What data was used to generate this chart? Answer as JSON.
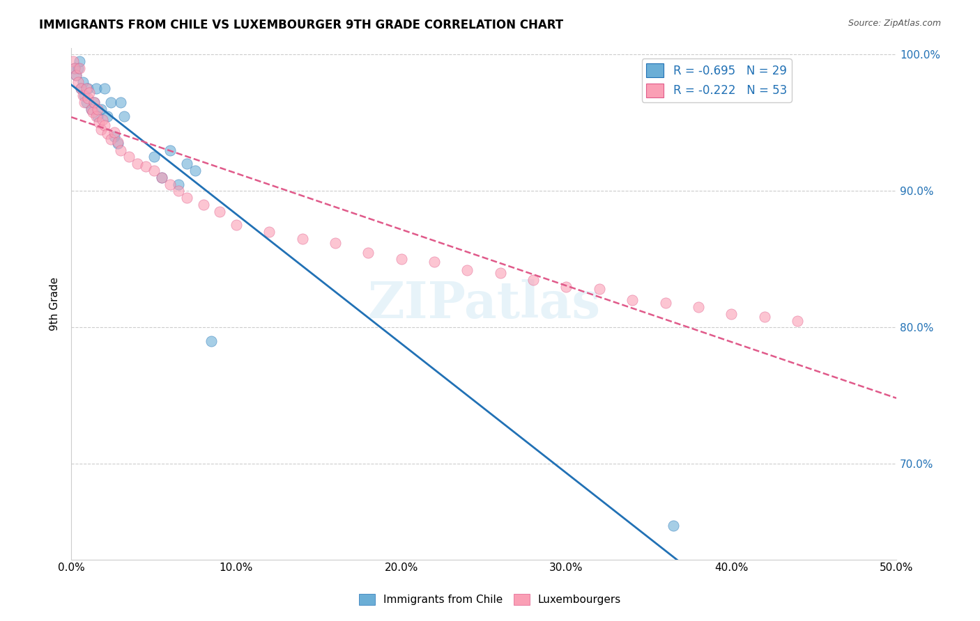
{
  "title": "IMMIGRANTS FROM CHILE VS LUXEMBOURGER 9TH GRADE CORRELATION CHART",
  "source": "Source: ZipAtlas.com",
  "xlabel_bottom": "",
  "ylabel": "9th Grade",
  "x_min": 0.0,
  "x_max": 0.5,
  "y_min": 0.63,
  "y_max": 1.005,
  "x_ticks": [
    0.0,
    0.1,
    0.2,
    0.3,
    0.4,
    0.5
  ],
  "x_tick_labels": [
    "0.0%",
    "10.0%",
    "20.0%",
    "30.0%",
    "40.0%",
    "50.0%"
  ],
  "y_ticks": [
    0.7,
    0.8,
    0.9,
    1.0
  ],
  "y_tick_labels": [
    "70.0%",
    "80.0%",
    "90.0%",
    "100.0%"
  ],
  "legend_labels": [
    "Immigrants from Chile",
    "Luxembourgers"
  ],
  "blue_color": "#6baed6",
  "pink_color": "#fa9fb5",
  "blue_line_color": "#2171b5",
  "pink_line_color": "#e05a8a",
  "R_blue": -0.695,
  "N_blue": 29,
  "R_pink": -0.222,
  "N_pink": 53,
  "watermark": "ZIPatlas",
  "blue_scatter": [
    [
      0.002,
      0.99
    ],
    [
      0.003,
      0.985
    ],
    [
      0.004,
      0.99
    ],
    [
      0.005,
      0.995
    ],
    [
      0.006,
      0.975
    ],
    [
      0.007,
      0.98
    ],
    [
      0.008,
      0.97
    ],
    [
      0.009,
      0.965
    ],
    [
      0.01,
      0.975
    ],
    [
      0.012,
      0.96
    ],
    [
      0.014,
      0.965
    ],
    [
      0.015,
      0.975
    ],
    [
      0.016,
      0.955
    ],
    [
      0.018,
      0.96
    ],
    [
      0.02,
      0.975
    ],
    [
      0.022,
      0.955
    ],
    [
      0.024,
      0.965
    ],
    [
      0.026,
      0.94
    ],
    [
      0.028,
      0.935
    ],
    [
      0.03,
      0.965
    ],
    [
      0.032,
      0.955
    ],
    [
      0.05,
      0.925
    ],
    [
      0.055,
      0.91
    ],
    [
      0.06,
      0.93
    ],
    [
      0.065,
      0.905
    ],
    [
      0.07,
      0.92
    ],
    [
      0.075,
      0.915
    ],
    [
      0.085,
      0.79
    ],
    [
      0.365,
      0.655
    ]
  ],
  "pink_scatter": [
    [
      0.001,
      0.995
    ],
    [
      0.002,
      0.99
    ],
    [
      0.003,
      0.985
    ],
    [
      0.004,
      0.98
    ],
    [
      0.005,
      0.99
    ],
    [
      0.006,
      0.975
    ],
    [
      0.007,
      0.97
    ],
    [
      0.008,
      0.965
    ],
    [
      0.009,
      0.975
    ],
    [
      0.01,
      0.968
    ],
    [
      0.011,
      0.972
    ],
    [
      0.012,
      0.96
    ],
    [
      0.013,
      0.958
    ],
    [
      0.014,
      0.965
    ],
    [
      0.015,
      0.955
    ],
    [
      0.016,
      0.96
    ],
    [
      0.017,
      0.95
    ],
    [
      0.018,
      0.945
    ],
    [
      0.019,
      0.952
    ],
    [
      0.02,
      0.948
    ],
    [
      0.022,
      0.942
    ],
    [
      0.024,
      0.938
    ],
    [
      0.026,
      0.943
    ],
    [
      0.028,
      0.936
    ],
    [
      0.03,
      0.93
    ],
    [
      0.035,
      0.925
    ],
    [
      0.04,
      0.92
    ],
    [
      0.045,
      0.918
    ],
    [
      0.05,
      0.915
    ],
    [
      0.055,
      0.91
    ],
    [
      0.06,
      0.905
    ],
    [
      0.065,
      0.9
    ],
    [
      0.07,
      0.895
    ],
    [
      0.08,
      0.89
    ],
    [
      0.09,
      0.885
    ],
    [
      0.1,
      0.875
    ],
    [
      0.12,
      0.87
    ],
    [
      0.14,
      0.865
    ],
    [
      0.16,
      0.862
    ],
    [
      0.18,
      0.855
    ],
    [
      0.2,
      0.85
    ],
    [
      0.22,
      0.848
    ],
    [
      0.24,
      0.842
    ],
    [
      0.26,
      0.84
    ],
    [
      0.28,
      0.835
    ],
    [
      0.3,
      0.83
    ],
    [
      0.32,
      0.828
    ],
    [
      0.34,
      0.82
    ],
    [
      0.36,
      0.818
    ],
    [
      0.38,
      0.815
    ],
    [
      0.4,
      0.81
    ],
    [
      0.42,
      0.808
    ],
    [
      0.44,
      0.805
    ]
  ]
}
